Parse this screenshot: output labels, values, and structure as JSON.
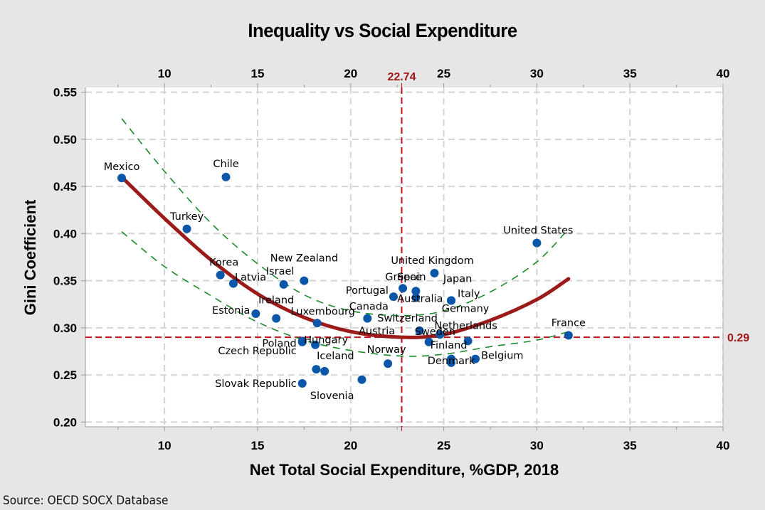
{
  "chart_data": {
    "type": "scatter",
    "title": "Inequality vs Social Expenditure",
    "xlabel": "Net Total Social Expenditure, %GDP, 2018",
    "ylabel": "Gini Coefficient",
    "xlim": [
      5.75,
      40
    ],
    "ylim": [
      0.195,
      0.555
    ],
    "xticks": [
      10,
      15,
      20,
      25,
      30,
      35,
      40
    ],
    "yticks": [
      0.2,
      0.25,
      0.3,
      0.35,
      0.4,
      0.45,
      0.5,
      0.55
    ],
    "ytick_labels": [
      "0.20",
      "0.25",
      "0.30",
      "0.35",
      "0.40",
      "0.45",
      "0.50",
      "0.55"
    ],
    "grid": true,
    "point_color": "#0a56a8",
    "fit_color": "#9b1b1b",
    "ci_color": "#1a8a2a",
    "reference_color": "#c0141a",
    "reference_lines": {
      "x": 22.74,
      "x_label": "22.74",
      "y": 0.29,
      "y_label": "0.29"
    },
    "points": [
      {
        "label": "Mexico",
        "x": 7.7,
        "y": 0.459
      },
      {
        "label": "Chile",
        "x": 13.3,
        "y": 0.46
      },
      {
        "label": "Turkey",
        "x": 11.2,
        "y": 0.405
      },
      {
        "label": "Korea",
        "x": 13.0,
        "y": 0.356
      },
      {
        "label": "Latvia",
        "x": 13.7,
        "y": 0.347
      },
      {
        "label": "Israel",
        "x": 16.4,
        "y": 0.346
      },
      {
        "label": "New Zealand",
        "x": 17.5,
        "y": 0.35
      },
      {
        "label": "Estonia",
        "x": 14.9,
        "y": 0.315
      },
      {
        "label": "Ireland",
        "x": 16.0,
        "y": 0.31
      },
      {
        "label": "Luxembourg",
        "x": 18.2,
        "y": 0.305
      },
      {
        "label": "Poland",
        "x": 17.4,
        "y": 0.286
      },
      {
        "label": "Czech Republic",
        "x": 17.4,
        "y": 0.285
      },
      {
        "label": "Hungary",
        "x": 18.1,
        "y": 0.282
      },
      {
        "label": "Iceland",
        "x": 18.15,
        "y": 0.256
      },
      {
        "label": "",
        "x": 18.6,
        "y": 0.254
      },
      {
        "label": "Slovak Republic",
        "x": 17.4,
        "y": 0.241
      },
      {
        "label": "Slovenia",
        "x": 20.6,
        "y": 0.245
      },
      {
        "label": "Norway",
        "x": 22.0,
        "y": 0.262
      },
      {
        "label": "Canada",
        "x": 20.9,
        "y": 0.31
      },
      {
        "label": "Portugal",
        "x": 22.3,
        "y": 0.333
      },
      {
        "label": "Greece",
        "x": 22.8,
        "y": 0.342
      },
      {
        "label": "Spain",
        "x": 23.5,
        "y": 0.339
      },
      {
        "label": "Australia",
        "x": 23.5,
        "y": 0.332
      },
      {
        "label": "United Kingdom",
        "x": 24.5,
        "y": 0.358
      },
      {
        "label": "Japan",
        "x": 25.4,
        "y": 0.329
      },
      {
        "label": "Italy",
        "x": 25.4,
        "y": 0.329
      },
      {
        "label": "Germany",
        "x": 25.4,
        "y": 0.329
      },
      {
        "label": "Switzerland",
        "x": 23.7,
        "y": 0.297
      },
      {
        "label": "Austria",
        "x": 23.7,
        "y": 0.297
      },
      {
        "label": "Sweden",
        "x": 24.8,
        "y": 0.293
      },
      {
        "label": "Finland",
        "x": 24.2,
        "y": 0.285
      },
      {
        "label": "Netherlands",
        "x": 26.3,
        "y": 0.286
      },
      {
        "label": "Denmark",
        "x": 25.4,
        "y": 0.263
      },
      {
        "label": "",
        "x": 25.4,
        "y": 0.267
      },
      {
        "label": "Belgium",
        "x": 26.7,
        "y": 0.267
      },
      {
        "label": "United States",
        "x": 30.0,
        "y": 0.39
      },
      {
        "label": "France",
        "x": 31.7,
        "y": 0.292
      }
    ],
    "fit": {
      "type": "quadratic",
      "x": [
        7.7,
        10,
        12.5,
        15,
        17.5,
        20,
        22.74,
        25,
        27.5,
        30,
        31.7
      ],
      "y": [
        0.46,
        0.416,
        0.372,
        0.336,
        0.311,
        0.296,
        0.29,
        0.293,
        0.308,
        0.33,
        0.352
      ]
    },
    "ci_upper": {
      "x": [
        7.7,
        10,
        12.5,
        15,
        17.5,
        20,
        22.74,
        25,
        27.5,
        30,
        31.7
      ],
      "y": [
        0.522,
        0.466,
        0.411,
        0.368,
        0.335,
        0.318,
        0.313,
        0.318,
        0.338,
        0.37,
        0.405
      ]
    },
    "ci_lower": {
      "x": [
        7.7,
        10,
        12.5,
        15,
        17.5,
        20,
        22.74,
        25,
        27.5,
        30,
        31.7
      ],
      "y": [
        0.402,
        0.365,
        0.334,
        0.306,
        0.287,
        0.276,
        0.27,
        0.272,
        0.28,
        0.287,
        0.296
      ]
    }
  },
  "source": "Source: OECD SOCX Database"
}
